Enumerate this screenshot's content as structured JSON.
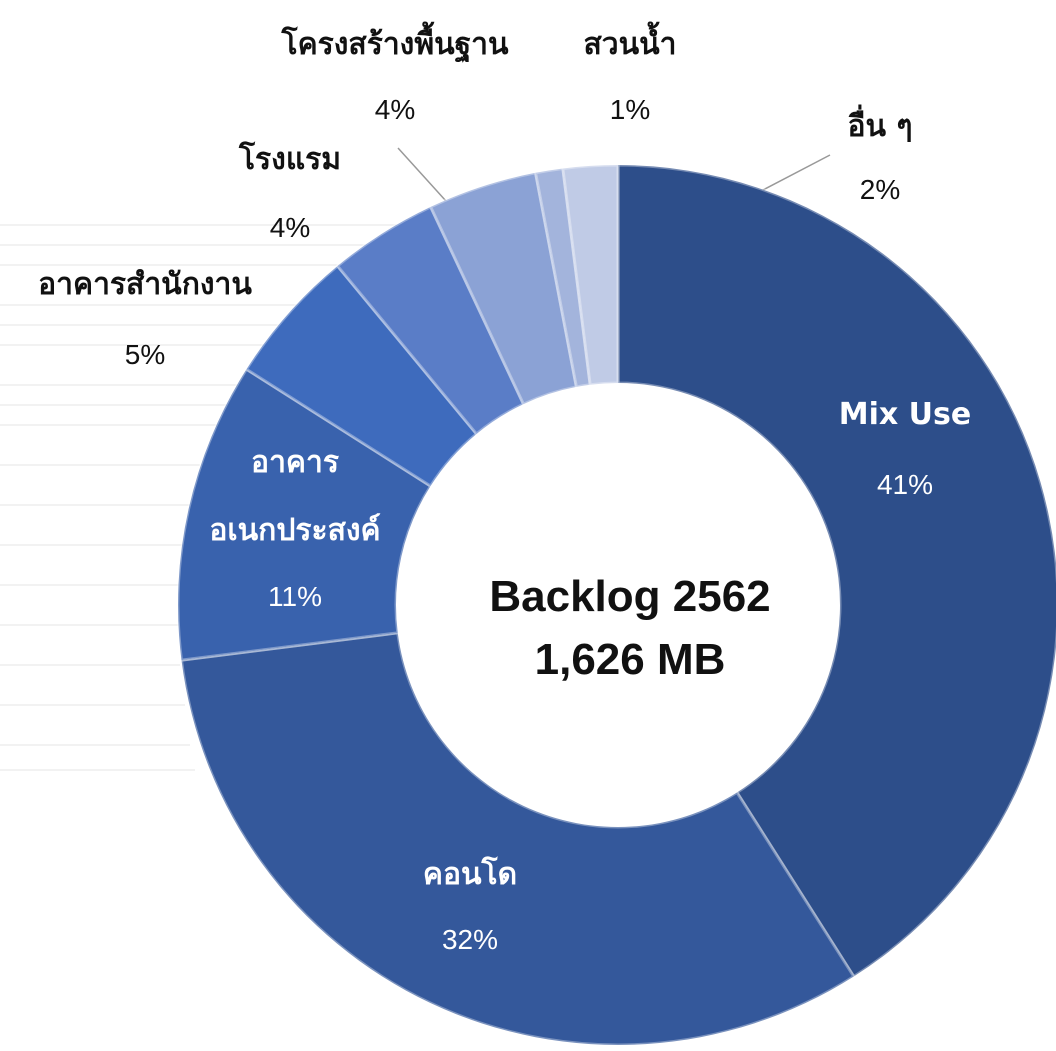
{
  "chart_data": {
    "type": "donut",
    "categories": [
      "Mix Use",
      "คอนโด",
      "อาคาร\nอเนกประสงค์",
      "อาคารสำนักงาน",
      "โรงแรม",
      "โครงสร้างพื้นฐาน",
      "สวนน้ำ",
      "อื่น ๆ"
    ],
    "values": [
      41,
      32,
      11,
      5,
      4,
      4,
      1,
      2
    ],
    "value_labels": [
      "41%",
      "32%",
      "11%",
      "5%",
      "4%",
      "4%",
      "1%",
      "2%"
    ],
    "colors": [
      "#2d4e8a",
      "#34589b",
      "#3962ad",
      "#3e6bbd",
      "#5a7dc7",
      "#8ba2d5",
      "#a3b4dc",
      "#c0cbe6"
    ],
    "center_text": [
      "Backlog 2562",
      "1,626 MB"
    ]
  }
}
